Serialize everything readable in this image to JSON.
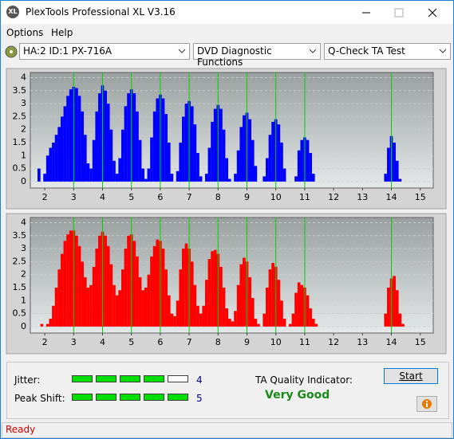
{
  "window": {
    "icon": "XL",
    "title": "PlexTools Professional XL V3.16"
  },
  "menu": [
    "Options",
    "Help"
  ],
  "toolbar": {
    "drive": "HA:2 ID:1  PX-716A",
    "function": "DVD Diagnostic Functions",
    "test": "Q-Check TA Test"
  },
  "chart_data": [
    {
      "type": "bar",
      "color": "#0000ff",
      "marker_color": "#00d000",
      "grid": true,
      "xlim": [
        1.5,
        15.45
      ],
      "ylim": [
        -0.25,
        4.2
      ],
      "xticks": [
        2,
        3,
        4,
        5,
        6,
        7,
        8,
        9,
        10,
        11,
        12,
        13,
        14,
        15
      ],
      "yticks": [
        0,
        0.5,
        1,
        1.5,
        2,
        2.5,
        3,
        3.5,
        4
      ],
      "markers": [
        3,
        4,
        5,
        6,
        7,
        8,
        9,
        10,
        11,
        14
      ],
      "x": [
        1.8,
        1.9,
        2,
        2.1,
        2.2,
        2.3,
        2.4,
        2.5,
        2.6,
        2.7,
        2.8,
        2.9,
        3,
        3.1,
        3.2,
        3.3,
        3.4,
        3.5,
        3.6,
        3.7,
        3.8,
        3.9,
        4,
        4.1,
        4.2,
        4.3,
        4.4,
        4.5,
        4.6,
        4.7,
        4.8,
        4.9,
        5,
        5.1,
        5.2,
        5.3,
        5.4,
        5.5,
        5.6,
        5.7,
        5.8,
        5.9,
        6,
        6.1,
        6.2,
        6.3,
        6.4,
        6.5,
        6.6,
        6.7,
        6.8,
        6.9,
        7,
        7.1,
        7.2,
        7.3,
        7.4,
        7.5,
        7.6,
        7.7,
        7.8,
        7.9,
        8,
        8.1,
        8.2,
        8.3,
        8.4,
        8.5,
        8.6,
        8.7,
        8.8,
        8.9,
        9,
        9.1,
        9.2,
        9.3,
        9.4,
        9.5,
        9.6,
        9.7,
        9.8,
        9.9,
        10,
        10.1,
        10.2,
        10.3,
        10.4,
        10.5,
        10.6,
        10.7,
        10.8,
        10.9,
        11,
        11.1,
        11.2,
        11.3,
        11.4,
        13.8,
        13.9,
        14,
        14.1,
        14.2,
        14.3,
        14.4
      ],
      "values": [
        0.5,
        0,
        0.3,
        1.0,
        1.3,
        1.5,
        1.8,
        2.1,
        2.5,
        2.9,
        3.3,
        3.55,
        3.65,
        3.6,
        3.3,
        2.7,
        1.8,
        0.7,
        0.5,
        1.6,
        2.7,
        3.4,
        3.7,
        3.5,
        3.0,
        2.0,
        0.8,
        0.3,
        0.9,
        2.0,
        2.9,
        3.4,
        3.55,
        3.4,
        2.7,
        1.6,
        0.5,
        0.1,
        0.5,
        1.7,
        2.7,
        3.2,
        3.35,
        3.2,
        2.6,
        1.5,
        0.3,
        0,
        0.4,
        1.5,
        2.5,
        3.0,
        3.1,
        2.9,
        2.2,
        1.1,
        0.2,
        0,
        0.3,
        1.3,
        2.3,
        2.8,
        2.95,
        2.8,
        2.0,
        0.9,
        0.1,
        0,
        0.3,
        1.2,
        2.1,
        2.55,
        2.65,
        2.4,
        1.6,
        0.6,
        0,
        0,
        0.2,
        0.9,
        1.8,
        2.3,
        2.4,
        2.2,
        1.5,
        0.5,
        0,
        0,
        0,
        0.2,
        1.2,
        1.6,
        1.7,
        1.6,
        1.1,
        0.3,
        0,
        0.3,
        1.3,
        1.75,
        1.5,
        0.8,
        0.1,
        0
      ]
    },
    {
      "type": "bar",
      "color": "#ff0000",
      "marker_color": "#00d000",
      "grid": true,
      "xlim": [
        1.5,
        15.45
      ],
      "ylim": [
        -0.25,
        4.2
      ],
      "xticks": [
        2,
        3,
        4,
        5,
        6,
        7,
        8,
        9,
        10,
        11,
        12,
        13,
        14,
        15
      ],
      "yticks": [
        0,
        0.5,
        1,
        1.5,
        2,
        2.5,
        3,
        3.5,
        4
      ],
      "markers": [
        3,
        4,
        5,
        6,
        7,
        8,
        9,
        10,
        11,
        14
      ],
      "x": [
        1.8,
        1.9,
        2,
        2.1,
        2.2,
        2.3,
        2.4,
        2.5,
        2.6,
        2.7,
        2.8,
        2.9,
        3,
        3.1,
        3.2,
        3.3,
        3.4,
        3.5,
        3.6,
        3.7,
        3.8,
        3.9,
        4,
        4.1,
        4.2,
        4.3,
        4.4,
        4.5,
        4.6,
        4.7,
        4.8,
        4.9,
        5,
        5.1,
        5.2,
        5.3,
        5.4,
        5.5,
        5.6,
        5.7,
        5.8,
        5.9,
        6,
        6.1,
        6.2,
        6.3,
        6.4,
        6.5,
        6.6,
        6.7,
        6.8,
        6.9,
        7,
        7.1,
        7.2,
        7.3,
        7.4,
        7.5,
        7.6,
        7.7,
        7.8,
        7.9,
        8,
        8.1,
        8.2,
        8.3,
        8.4,
        8.5,
        8.6,
        8.7,
        8.8,
        8.9,
        9,
        9.1,
        9.2,
        9.3,
        9.4,
        9.5,
        9.6,
        9.7,
        9.8,
        9.9,
        10,
        10.1,
        10.2,
        10.3,
        10.4,
        10.5,
        10.6,
        10.7,
        10.8,
        10.9,
        11,
        11.1,
        11.2,
        11.3,
        11.4,
        13.8,
        13.9,
        14,
        14.1,
        14.2,
        14.3,
        14.4
      ],
      "values": [
        0,
        0.1,
        0,
        0.1,
        0.3,
        0.8,
        1.5,
        2.2,
        2.8,
        3.3,
        3.55,
        3.7,
        3.7,
        3.5,
        3.1,
        2.5,
        1.9,
        1.5,
        1.6,
        2.3,
        3.0,
        3.5,
        3.65,
        3.5,
        3.1,
        2.4,
        1.6,
        1.2,
        1.4,
        2.2,
        3.0,
        3.5,
        3.55,
        3.3,
        2.7,
        1.9,
        1.4,
        1.5,
        2.0,
        2.7,
        3.1,
        3.35,
        3.3,
        3.0,
        2.2,
        1.2,
        0.5,
        0.4,
        1.0,
        2.2,
        3.0,
        3.2,
        3.0,
        2.5,
        1.6,
        0.8,
        0.5,
        0.8,
        1.8,
        2.6,
        2.9,
        2.95,
        2.8,
        2.3,
        1.5,
        0.7,
        0.3,
        0.2,
        0.6,
        1.6,
        2.4,
        2.65,
        2.5,
        1.9,
        1.1,
        0.3,
        0.1,
        0,
        0.5,
        1.5,
        2.2,
        2.45,
        2.3,
        1.8,
        1.0,
        0.3,
        0,
        0.1,
        0.5,
        1.3,
        1.7,
        1.6,
        1.5,
        1.2,
        0.7,
        0.3,
        0.1,
        0.5,
        1.5,
        1.85,
        1.95,
        1.4,
        0.5,
        0.1
      ]
    }
  ],
  "jitter": {
    "label": "Jitter:",
    "value": 4
  },
  "peak_shift": {
    "label": "Peak Shift:",
    "value": 5
  },
  "quality": {
    "label": "TA Quality Indicator:",
    "value": "Very Good"
  },
  "start_button": "Start",
  "status": "Ready"
}
